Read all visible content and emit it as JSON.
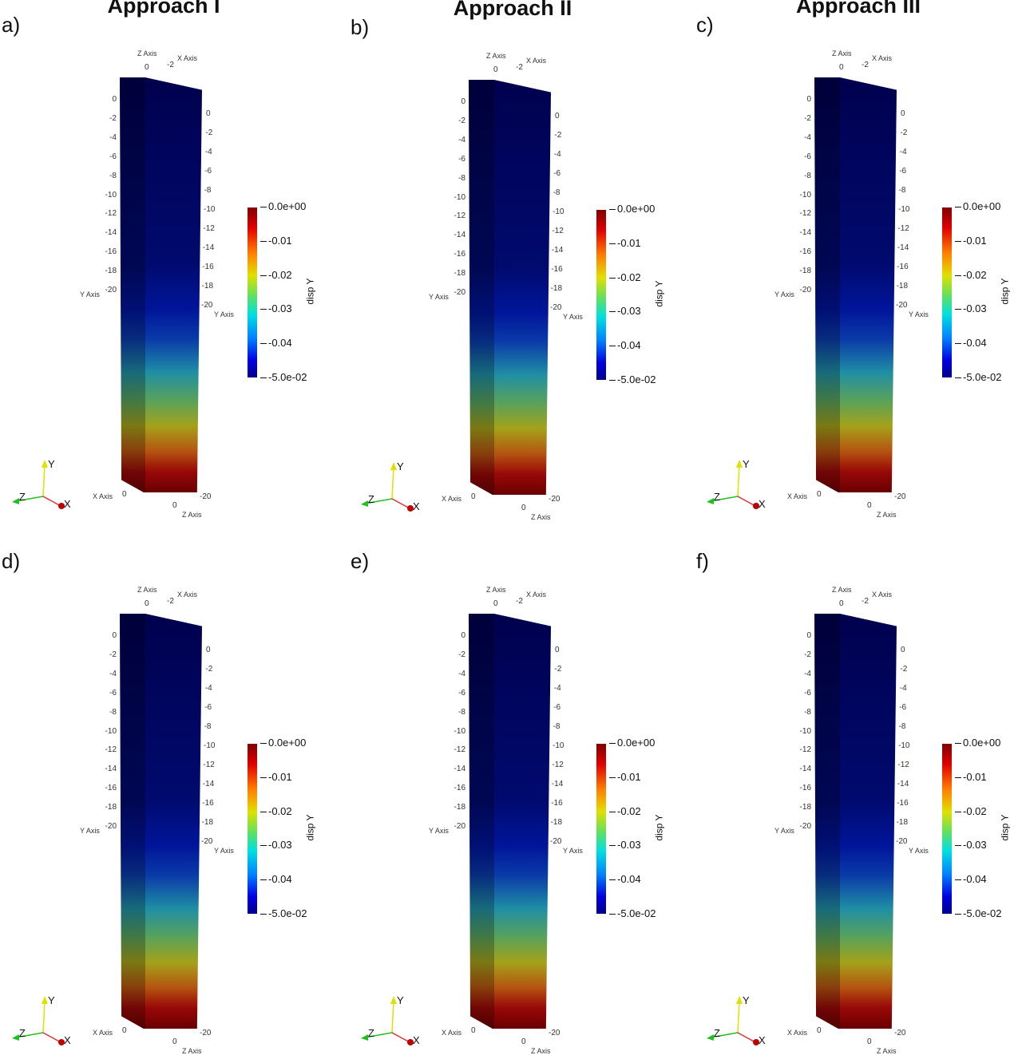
{
  "figure": {
    "panels": [
      {
        "label": "a)",
        "title": "Approach I"
      },
      {
        "label": "b)",
        "title": "Approach II"
      },
      {
        "label": "c)",
        "title": "Approach III"
      },
      {
        "label": "d)",
        "title": ""
      },
      {
        "label": "e)",
        "title": ""
      },
      {
        "label": "f)",
        "title": ""
      }
    ],
    "y_ticks": [
      "0",
      "-2",
      "-4",
      "-6",
      "-8",
      "-10",
      "-12",
      "-14",
      "-16",
      "-18",
      "-20"
    ],
    "axis_labels": {
      "y": "Y Axis",
      "x": "X Axis",
      "z": "Z Axis",
      "top_zero": "0",
      "top_x": "-2",
      "bottom_x0": "0",
      "bottom_z0": "0",
      "bottom_z20": "-20"
    },
    "triad": {
      "x": "X",
      "y": "Y",
      "z": "Z"
    },
    "colorbar": {
      "title": "disp Y",
      "labels": [
        "0.0e+00",
        "-0.01",
        "-0.02",
        "-0.03",
        "-0.04",
        "-5.0e-02"
      ]
    }
  }
}
